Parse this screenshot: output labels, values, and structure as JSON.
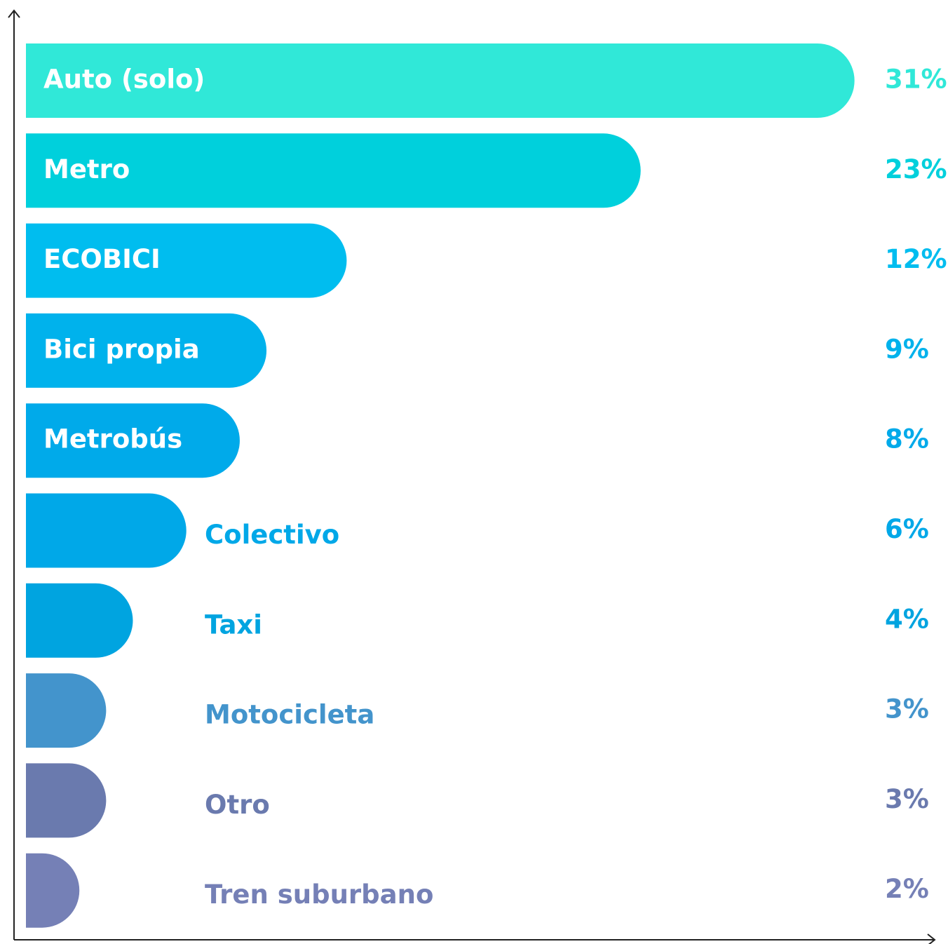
{
  "chart_data": {
    "type": "bar",
    "orientation": "horizontal",
    "categories": [
      "Auto (solo)",
      "Metro",
      "ECOBICI",
      "Bici propia",
      "Metrobús",
      "Colectivo",
      "Taxi",
      "Motocicleta",
      "Otro",
      "Tren suburbano"
    ],
    "values": [
      31,
      23,
      12,
      9,
      8,
      6,
      4,
      3,
      3,
      2
    ],
    "value_labels": [
      "31%",
      "23%",
      "12%",
      "9%",
      "8%",
      "6%",
      "4%",
      "3%",
      "3%",
      "2%"
    ],
    "colors": [
      "#30e8d8",
      "#00d0dc",
      "#00bdef",
      "#00b2ec",
      "#00aaea",
      "#00a8e8",
      "#00a4e0",
      "#4394cc",
      "#6a7aae",
      "#7580b6"
    ],
    "xlim": [
      0,
      34
    ]
  }
}
